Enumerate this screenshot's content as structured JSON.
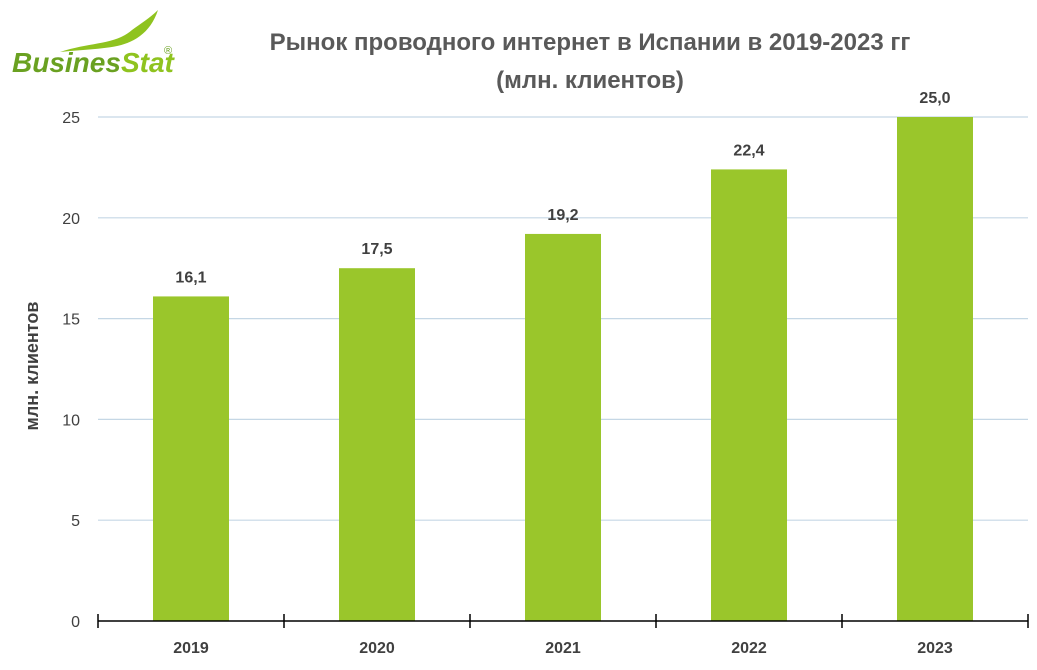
{
  "logo": {
    "text_part1": "Busines",
    "text_part2": "Stat",
    "registered": "®",
    "color_dark": "#6aa121",
    "color_light": "#8fc31f"
  },
  "colors": {
    "bar": "#9ac62b",
    "grid": "#c5d7e5",
    "axis": "#000000",
    "text": "#404040",
    "title": "#595959"
  },
  "chart_data": {
    "type": "bar",
    "title_line1": "Рынок проводного интернет в Испании в 2019-2023 гг",
    "title_line2": "(млн. клиентов)",
    "xlabel": "",
    "ylabel": "млн. клиентов",
    "categories": [
      "2019",
      "2020",
      "2021",
      "2022",
      "2023"
    ],
    "values": [
      16.1,
      17.5,
      19.2,
      22.4,
      25.0
    ],
    "data_labels": [
      "16,1",
      "17,5",
      "19,2",
      "22,4",
      "25,0"
    ],
    "ylim": [
      0,
      25
    ],
    "yticks": [
      0,
      5,
      10,
      15,
      20,
      25
    ],
    "grid": true,
    "legend": "none"
  }
}
